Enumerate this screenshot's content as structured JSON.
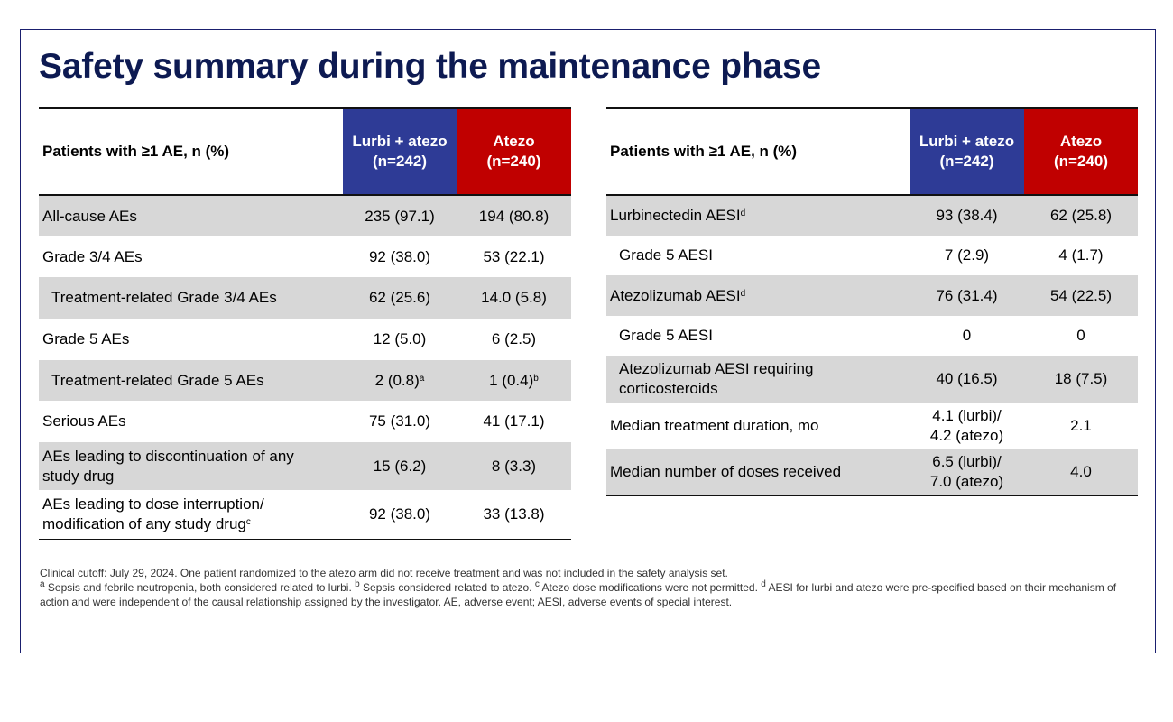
{
  "title": "Safety summary during the maintenance phase",
  "colors": {
    "navy": "#0d1a52",
    "lurbi": "#2e3b96",
    "atezo": "#c00000",
    "shade": "#d7d7d7"
  },
  "left_table": {
    "header": {
      "label": "Patients with ≥1 AE, n (%)",
      "col1_l1": "Lurbi + atezo",
      "col1_l2": "(n=242)",
      "col2_l1": "Atezo",
      "col2_l2": "(n=240)"
    },
    "rows": [
      {
        "label": "All-cause AEs",
        "lurbi": "235 (97.1)",
        "atezo": "194 (80.8)"
      },
      {
        "label": "Grade 3/4 AEs",
        "lurbi": "92 (38.0)",
        "atezo": "53 (22.1)"
      },
      {
        "label": "Treatment-related Grade 3/4 AEs",
        "lurbi": "62 (25.6)",
        "atezo": "14.0 (5.8)"
      },
      {
        "label": "Grade 5 AEs",
        "lurbi": "12 (5.0)",
        "atezo": "6 (2.5)"
      },
      {
        "label": "Treatment-related Grade 5 AEs",
        "lurbi": "2 (0.8)",
        "lurbi_sup": "a",
        "atezo": "1 (0.4)",
        "atezo_sup": "b"
      },
      {
        "label": "Serious AEs",
        "lurbi": "75 (31.0)",
        "atezo": "41 (17.1)"
      },
      {
        "label_l1": "AEs leading to discontinuation of any",
        "label_l2": "study drug",
        "lurbi": "15 (6.2)",
        "atezo": "8 (3.3)"
      },
      {
        "label_l1": "AEs leading to dose interruption/",
        "label_l2": "modification of any study drug",
        "label_sup": "c",
        "lurbi": "92 (38.0)",
        "atezo": "33 (13.8)"
      }
    ]
  },
  "right_table": {
    "header": {
      "label": "Patients with ≥1 AE, n (%)",
      "col1_l1": "Lurbi + atezo",
      "col1_l2": "(n=242)",
      "col2_l1": "Atezo",
      "col2_l2": "(n=240)"
    },
    "rows": [
      {
        "label": "Lurbinectedin AESI",
        "label_sup": "d",
        "lurbi": "93 (38.4)",
        "atezo": "62 (25.8)"
      },
      {
        "label": "Grade 5 AESI",
        "lurbi": "7 (2.9)",
        "atezo": "4 (1.7)"
      },
      {
        "label": "Atezolizumab AESI",
        "label_sup": "d",
        "lurbi": "76 (31.4)",
        "atezo": "54 (22.5)"
      },
      {
        "label": "Grade 5 AESI",
        "lurbi": "0",
        "atezo": "0"
      },
      {
        "label_l1": "Atezolizumab AESI requiring",
        "label_l2": "corticosteroids",
        "lurbi": "40 (16.5)",
        "atezo": "18 (7.5)"
      },
      {
        "label": "Median treatment duration, mo",
        "lurbi_l1": "4.1 (lurbi)/",
        "lurbi_l2": "4.2 (atezo)",
        "atezo": "2.1"
      },
      {
        "label": "Median number of doses received",
        "lurbi_l1": "6.5 (lurbi)/",
        "lurbi_l2": "7.0 (atezo)",
        "atezo": "4.0"
      }
    ]
  },
  "footnotes": {
    "line1": "Clinical cutoff: July 29, 2024. One patient randomized to the atezo arm did not receive treatment and was not included in the safety analysis set.",
    "sup_a": "a",
    "note_a": " Sepsis and febrile neutropenia, both considered related to lurbi. ",
    "sup_b": "b",
    "note_b": " Sepsis considered related to atezo. ",
    "sup_c": "c",
    "note_c": " Atezo dose modifications were not permitted. ",
    "sup_d": "d",
    "note_d": " AESI for lurbi and atezo were pre-specified based on their mechanism of action and were independent of the causal relationship assigned by the investigator. AE, adverse event; AESI, adverse events of special interest."
  }
}
